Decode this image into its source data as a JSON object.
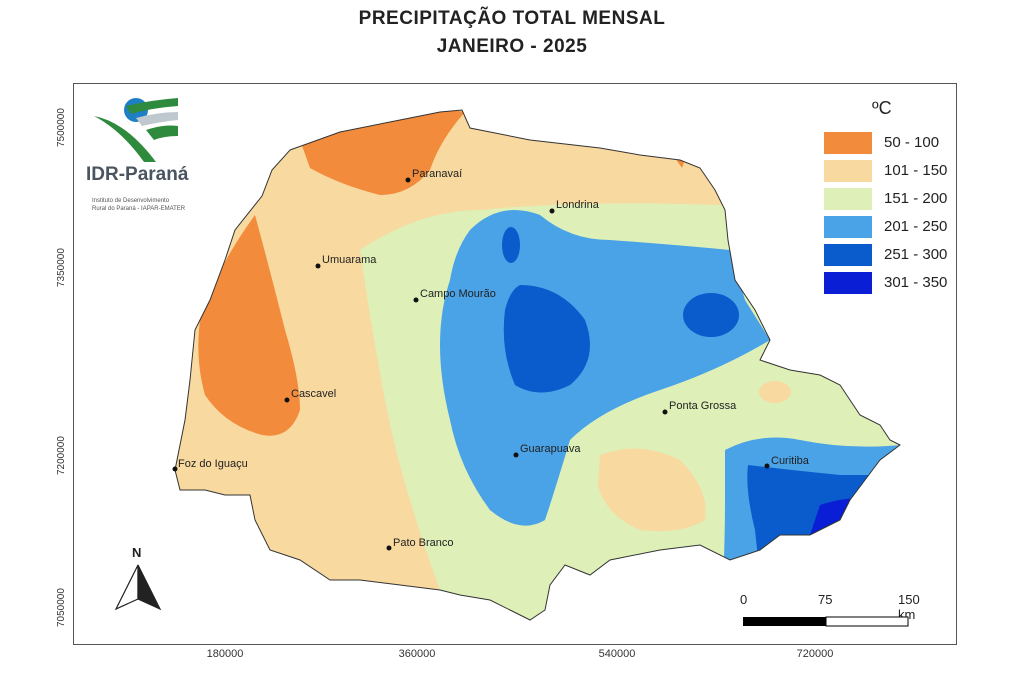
{
  "title_line1": "PRECIPITAÇÃO TOTAL MENSAL",
  "title_line2": "JANEIRO - 2025",
  "axes": {
    "y_ticks": [
      "7500000",
      "7350000",
      "7200000",
      "7050000"
    ],
    "x_ticks": [
      "180000",
      "360000",
      "540000",
      "720000"
    ]
  },
  "legend": {
    "unit": "ºC",
    "classes": [
      {
        "label": "50 - 100",
        "color": "#f28c3c"
      },
      {
        "label": "101 - 150",
        "color": "#f8d9a0"
      },
      {
        "label": "151 - 200",
        "color": "#def0b8"
      },
      {
        "label": "201 - 250",
        "color": "#4aa3e6"
      },
      {
        "label": "251 - 300",
        "color": "#0a5ccc"
      },
      {
        "label": "301 - 350",
        "color": "#0a1ed6"
      }
    ]
  },
  "cities": [
    "Paranavaí",
    "Londrina",
    "Umuarama",
    "Campo Mourão",
    "Cascavel",
    "Ponta Grossa",
    "Guarapuava",
    "Foz do Iguaçu",
    "Curitiba",
    "Pato Branco"
  ],
  "logo": {
    "name": "IDR-Paraná",
    "subtitle_line1": "Instituto de Desenvolvimento",
    "subtitle_line2": "Rural do Paraná - IAPAR-EMATER"
  },
  "north_arrow": "N",
  "scale_bar": {
    "labels": [
      "0",
      "75",
      "150 km"
    ]
  }
}
